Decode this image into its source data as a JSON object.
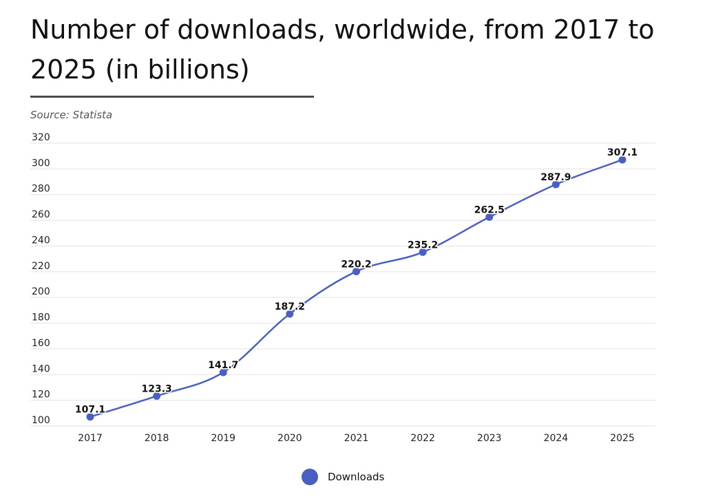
{
  "header": {
    "title": "Number of downloads, worldwide, from 2017 to 2025  (in billions)",
    "source": "Source: Statista"
  },
  "colors": {
    "series": "#4a5fc1",
    "grid": "#e2e2e2",
    "text": "#111111"
  },
  "chart_data": {
    "type": "line",
    "x": [
      "2017",
      "2018",
      "2019",
      "2020",
      "2021",
      "2022",
      "2023",
      "2024",
      "2025"
    ],
    "series": [
      {
        "name": "Downloads",
        "values": [
          107.1,
          123.3,
          141.7,
          187.2,
          220.2,
          235.2,
          262.5,
          287.9,
          307.1
        ]
      }
    ],
    "data_labels": [
      "107.1",
      "123.3",
      "141.7",
      "187.2",
      "220.2",
      "235.2",
      "262.5",
      "287.9",
      "307.1"
    ],
    "title": "Number of downloads, worldwide, from 2017 to 2025  (in billions)",
    "xlabel": "",
    "ylabel": "",
    "ylim": [
      100,
      320
    ],
    "yticks": [
      100,
      120,
      140,
      160,
      180,
      200,
      220,
      240,
      260,
      280,
      300,
      320
    ],
    "grid": true,
    "smooth": true,
    "legend_position": "bottom-center"
  }
}
